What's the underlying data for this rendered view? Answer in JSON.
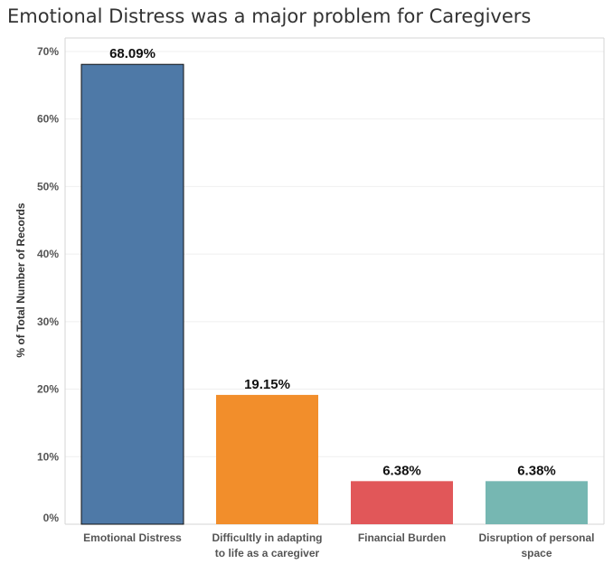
{
  "chart_data": {
    "type": "bar",
    "title": "Emotional Distress was a major problem for Caregivers",
    "ylabel": "% of Total Number of Records",
    "xlabel": "",
    "ylim": [
      0,
      72
    ],
    "yticks": [
      0,
      10,
      20,
      30,
      40,
      50,
      60,
      70
    ],
    "ytick_labels": [
      "0%",
      "10%",
      "20%",
      "30%",
      "40%",
      "50%",
      "60%",
      "70%"
    ],
    "grid": true,
    "categories": [
      [
        "Emotional Distress"
      ],
      [
        "Difficultly in adapting",
        "to life as a caregiver"
      ],
      [
        "Financial Burden"
      ],
      [
        "Disruption of personal",
        "space"
      ]
    ],
    "values": [
      68.09,
      19.15,
      6.38,
      6.38
    ],
    "data_labels": [
      "68.09%",
      "19.15%",
      "6.38%",
      "6.38%"
    ],
    "colors": [
      "#4e79a7",
      "#f28e2b",
      "#e15759",
      "#76b7b2"
    ]
  }
}
